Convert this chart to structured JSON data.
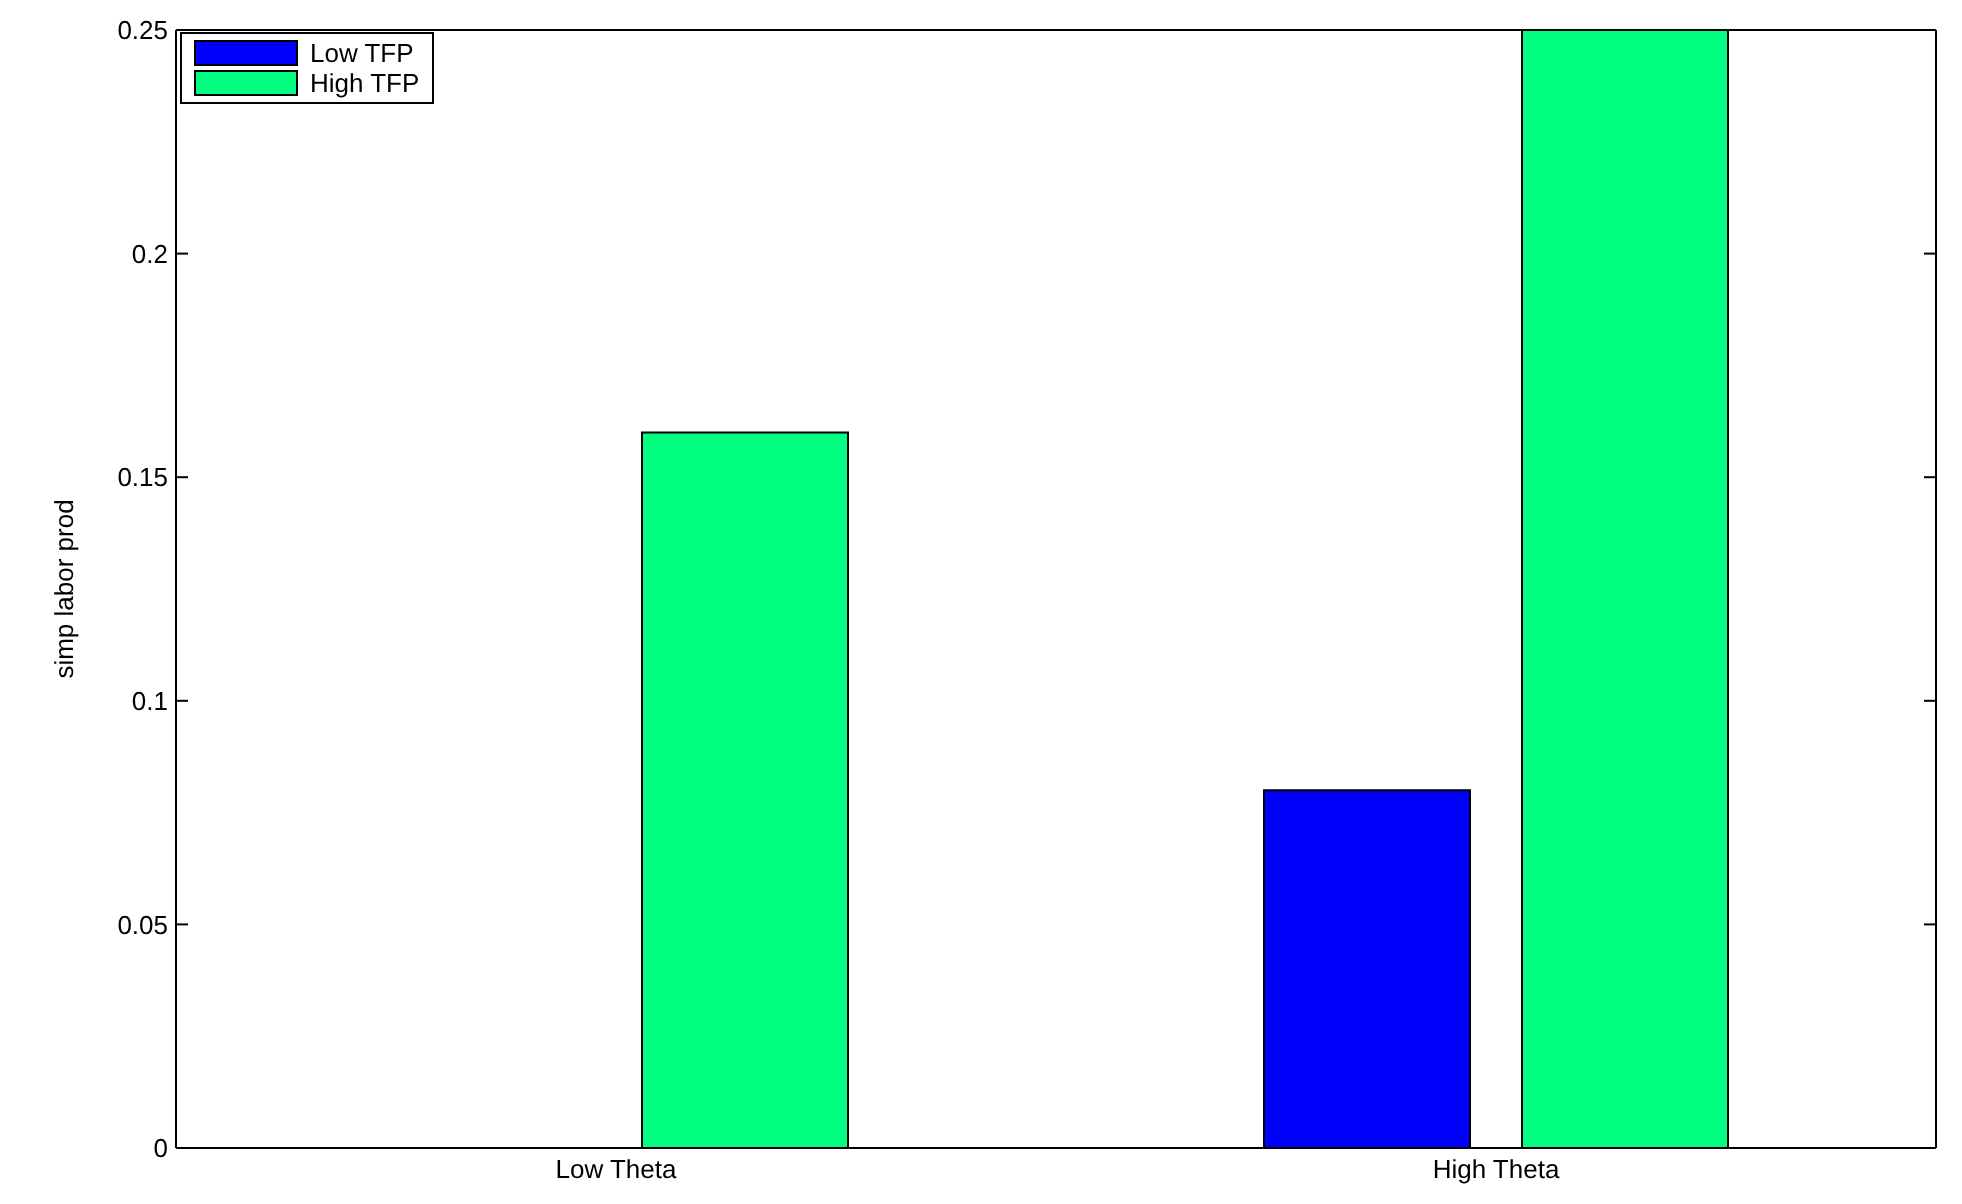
{
  "chart_data": {
    "type": "bar",
    "ylabel": "simp labor prod",
    "categories": [
      "Low Theta",
      "High Theta"
    ],
    "series": [
      {
        "name": "Low TFP",
        "color": "#0000ff",
        "values": [
          0,
          0.08
        ]
      },
      {
        "name": "High TFP",
        "color": "#00ff80",
        "values": [
          0.16,
          0.25
        ]
      }
    ],
    "ylim": [
      0,
      0.25
    ],
    "yticks": [
      0,
      0.05,
      0.1,
      0.15,
      0.2,
      0.25
    ],
    "grid": false,
    "legend": "top left"
  }
}
